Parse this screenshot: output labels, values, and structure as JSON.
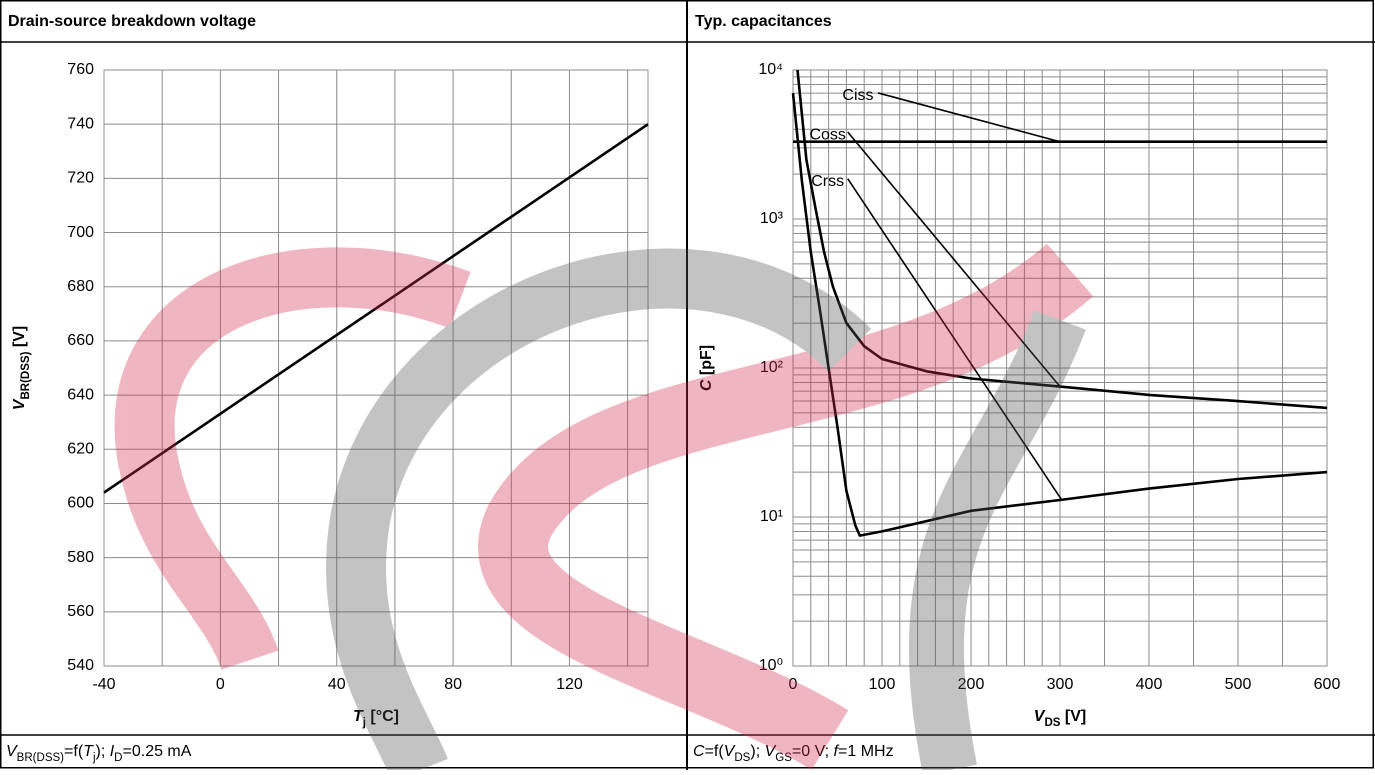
{
  "chart_data": [
    {
      "type": "line",
      "title": "Drain-source breakdown voltage",
      "xlabel": [
        {
          "text": "T",
          "style": "italic"
        },
        {
          "text": "j",
          "style": "sub"
        },
        {
          "text": " [°C]"
        }
      ],
      "ylabel": [
        {
          "text": "V",
          "style": "italic"
        },
        {
          "text": "BR(DSS)",
          "style": "sub"
        },
        {
          "text": " [V]"
        }
      ],
      "note": [
        {
          "text": "V",
          "style": "italic"
        },
        {
          "text": "BR(DSS)",
          "style": "sub"
        },
        {
          "text": "=f("
        },
        {
          "text": "T",
          "style": "italic"
        },
        {
          "text": "j",
          "style": "sub"
        },
        {
          "text": "); "
        },
        {
          "text": "I",
          "style": "italic"
        },
        {
          "text": "D",
          "style": "sub"
        },
        {
          "text": "=0.25 mA"
        }
      ],
      "xlim": [
        -40,
        147
      ],
      "xticks": [
        -40,
        0,
        40,
        80,
        120
      ],
      "xminorticks": [
        -20,
        20,
        60,
        100,
        140
      ],
      "ylim": [
        540,
        760
      ],
      "yticks": [
        540,
        560,
        580,
        600,
        620,
        640,
        660,
        680,
        700,
        720,
        740,
        760
      ],
      "log_scale": false,
      "grid": true,
      "series": [
        {
          "name": "VBR(DSS)",
          "color": "#000000",
          "x": [
            -40,
            147
          ],
          "values": [
            604,
            740
          ]
        }
      ]
    },
    {
      "type": "line",
      "title": "Typ. capacitances",
      "xlabel": [
        {
          "text": "V",
          "style": "italic"
        },
        {
          "text": "DS",
          "style": "sub"
        },
        {
          "text": " [V]"
        }
      ],
      "ylabel": [
        {
          "text": "C",
          "style": "italic"
        },
        {
          "text": " [pF]"
        }
      ],
      "note": [
        {
          "text": "C",
          "style": "italic"
        },
        {
          "text": "=f("
        },
        {
          "text": "V",
          "style": "italic"
        },
        {
          "text": "DS",
          "style": "sub"
        },
        {
          "text": "); "
        },
        {
          "text": "V",
          "style": "italic"
        },
        {
          "text": "GS",
          "style": "sub"
        },
        {
          "text": "=0 V; "
        },
        {
          "text": "f",
          "style": "italic"
        },
        {
          "text": "=1 MHz"
        }
      ],
      "xlim": [
        0,
        600
      ],
      "xticks": [
        0,
        100,
        200,
        300,
        400,
        500,
        600
      ],
      "xminorticks": [
        20,
        40,
        60,
        80,
        120,
        140,
        160,
        180,
        220,
        240,
        260,
        280,
        350,
        450,
        550
      ],
      "ylim": [
        1,
        10000
      ],
      "yticks": [
        {
          "value": 1,
          "label": "10⁰"
        },
        {
          "value": 10,
          "label": "10¹"
        },
        {
          "value": 100,
          "label": "10²"
        },
        {
          "value": 1000,
          "label": "10³"
        },
        {
          "value": 10000,
          "label": "10⁴"
        }
      ],
      "yminorticks": [
        2,
        3,
        4,
        5,
        6,
        7,
        8,
        9,
        20,
        30,
        40,
        50,
        60,
        70,
        80,
        90,
        200,
        300,
        400,
        500,
        600,
        700,
        800,
        900,
        2000,
        3000,
        4000,
        5000,
        6000,
        7000,
        8000,
        9000
      ],
      "log_scale": true,
      "grid": true,
      "series": [
        {
          "name": "Ciss",
          "color": "#000000",
          "x": [
            0,
            600
          ],
          "values": [
            3300,
            3300
          ]
        },
        {
          "name": "Coss",
          "color": "#000000",
          "x": [
            5,
            15,
            25,
            35,
            45,
            60,
            80,
            100,
            150,
            200,
            300,
            400,
            500,
            600
          ],
          "values": [
            10000,
            2500,
            1200,
            600,
            350,
            200,
            140,
            115,
            95,
            85,
            75,
            66,
            60,
            54
          ]
        },
        {
          "name": "Crss",
          "color": "#000000",
          "x": [
            0,
            10,
            20,
            30,
            40,
            50,
            60,
            70,
            75,
            100,
            200,
            300,
            400,
            500,
            600
          ],
          "values": [
            7000,
            1800,
            600,
            250,
            100,
            40,
            15,
            8.8,
            7.5,
            8,
            11,
            13,
            15.5,
            18,
            20
          ]
        }
      ],
      "annotations": [
        {
          "text": "Ciss",
          "x": 73,
          "y": 6700,
          "to_x": 300,
          "to_y": 3300
        },
        {
          "text": "Coss",
          "x": 39,
          "y": 3660,
          "to_x": 300,
          "to_y": 75
        },
        {
          "text": "Crss",
          "x": 39,
          "y": 1780,
          "to_x": 302,
          "to_y": 13
        }
      ]
    }
  ]
}
